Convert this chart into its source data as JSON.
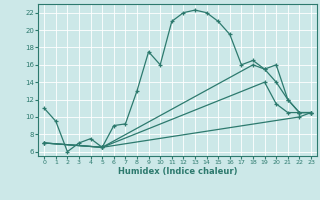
{
  "xlabel": "Humidex (Indice chaleur)",
  "bg_color": "#cce8e8",
  "grid_color": "#ffffff",
  "line_color": "#2d7a6e",
  "xlim": [
    -0.5,
    23.5
  ],
  "ylim": [
    5.5,
    23.0
  ],
  "xticks": [
    0,
    1,
    2,
    3,
    4,
    5,
    6,
    7,
    8,
    9,
    10,
    11,
    12,
    13,
    14,
    15,
    16,
    17,
    18,
    19,
    20,
    21,
    22,
    23
  ],
  "yticks": [
    6,
    8,
    10,
    12,
    14,
    16,
    18,
    20,
    22
  ],
  "line1_x": [
    0,
    1,
    2,
    3,
    4,
    5,
    6,
    7,
    8,
    9,
    10,
    11,
    12,
    13,
    14,
    15,
    16,
    17,
    18,
    19,
    20,
    21,
    22,
    23
  ],
  "line1_y": [
    11,
    9.5,
    6,
    7,
    7.5,
    6.5,
    9,
    9.2,
    13,
    17.5,
    16,
    21,
    22,
    22.3,
    22,
    21,
    19.5,
    16,
    16.5,
    15.5,
    16,
    12,
    10.5,
    10.5
  ],
  "line2_x": [
    0,
    5,
    22,
    23
  ],
  "line2_y": [
    7,
    6.5,
    10,
    10.5
  ],
  "line3_x": [
    0,
    5,
    19,
    20,
    21,
    22,
    23
  ],
  "line3_y": [
    7,
    6.5,
    14,
    11.5,
    10.5,
    10.5,
    10.5
  ],
  "line4_x": [
    0,
    5,
    18,
    19,
    20,
    21,
    22,
    23
  ],
  "line4_y": [
    7,
    6.5,
    16,
    15.5,
    14,
    12,
    10.5,
    10.5
  ]
}
